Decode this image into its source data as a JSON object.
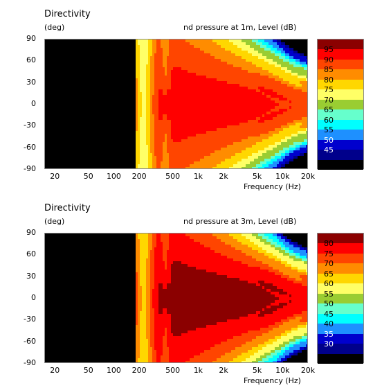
{
  "chart_data": [
    {
      "type": "heatmap",
      "title": "Directivity",
      "ylabel_unit": "(deg)",
      "colorbar_label": "nd pressure at 1m, Level  (dB)",
      "xlabel": "Frequency  (Hz)",
      "x_scale": "log",
      "xlim": [
        15,
        20000
      ],
      "ylim": [
        -90,
        90
      ],
      "x_tick_labels": [
        "20",
        "50",
        "100",
        "200",
        "500",
        "1k",
        "2k",
        "5k",
        "10k",
        "20k"
      ],
      "x_ticks": [
        20,
        50,
        100,
        200,
        500,
        1000,
        2000,
        5000,
        10000,
        20000
      ],
      "y_tick_labels": [
        "90",
        "60",
        "30",
        "0",
        "-30",
        "-60",
        "-90"
      ],
      "y_ticks": [
        90,
        60,
        30,
        0,
        -30,
        -60,
        -90
      ],
      "no_data_below_hz": 180,
      "legend_placement": "right",
      "levels_db": [
        95,
        90,
        85,
        80,
        75,
        70,
        65,
        60,
        55,
        50,
        45
      ],
      "level_colors": [
        "#8b0000",
        "#ff0000",
        "#ff4500",
        "#ff8c00",
        "#ffd700",
        "#ffff66",
        "#9acd32",
        "#66ffcc",
        "#00ffff",
        "#1e90ff",
        "#0000cd",
        "#00008b",
        "#000000"
      ],
      "peak_db": 92
    },
    {
      "type": "heatmap",
      "title": "Directivity",
      "ylabel_unit": "(deg)",
      "colorbar_label": "nd pressure at 3m, Level  (dB)",
      "xlabel": "Frequency  (Hz)",
      "x_scale": "log",
      "xlim": [
        15,
        20000
      ],
      "ylim": [
        -90,
        90
      ],
      "x_tick_labels": [
        "20",
        "50",
        "100",
        "200",
        "500",
        "1k",
        "2k",
        "5k",
        "10k",
        "20k"
      ],
      "x_ticks": [
        20,
        50,
        100,
        200,
        500,
        1000,
        2000,
        5000,
        10000,
        20000
      ],
      "y_tick_labels": [
        "90",
        "60",
        "30",
        "0",
        "-30",
        "-60",
        "-90"
      ],
      "y_ticks": [
        90,
        60,
        30,
        0,
        -30,
        -60,
        -90
      ],
      "no_data_below_hz": 180,
      "legend_placement": "right",
      "levels_db": [
        80,
        75,
        70,
        65,
        60,
        55,
        50,
        45,
        40,
        35,
        30
      ],
      "level_colors": [
        "#8b0000",
        "#ff0000",
        "#ff4500",
        "#ff8c00",
        "#ffd700",
        "#ffff66",
        "#9acd32",
        "#66ffcc",
        "#00ffff",
        "#1e90ff",
        "#0000cd",
        "#00008b",
        "#000000"
      ],
      "peak_db": 82
    }
  ]
}
